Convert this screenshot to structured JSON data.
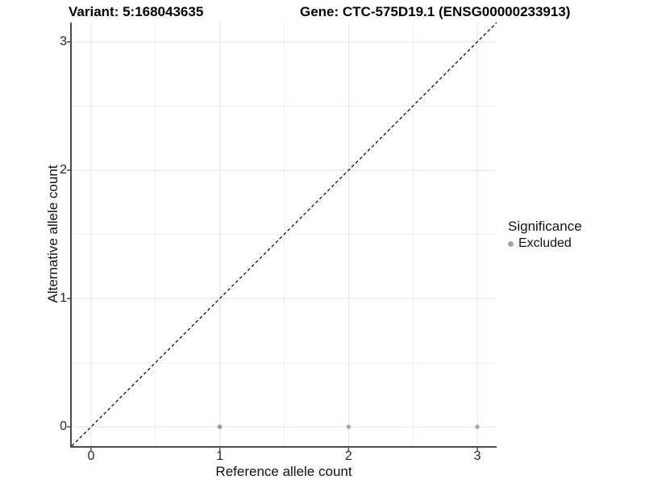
{
  "titles": {
    "variant": "Variant: 5:168043635",
    "gene": "Gene: CTC-575D19.1 (ENSG00000233913)"
  },
  "axes": {
    "x": {
      "label": "Reference allele count",
      "ticks": [
        "0",
        "1",
        "2",
        "3"
      ]
    },
    "y": {
      "label": "Alternative allele count",
      "ticks": [
        "0",
        "1",
        "2",
        "3"
      ]
    }
  },
  "legend": {
    "title": "Significance",
    "items": [
      {
        "label": "Excluded",
        "color": "#a3a3a3"
      }
    ]
  },
  "colors": {
    "background": "#ffffff",
    "axis_line": "#4c4c4c",
    "tick_mark": "#4c4c4c",
    "tick_label": "#262626",
    "grid_major": "#e3e3e3",
    "grid_minor": "#efefef",
    "reference_line": "#000000"
  },
  "chart_data": {
    "type": "scatter",
    "title": "Variant: 5:168043635 — Gene: CTC-575D19.1 (ENSG00000233913)",
    "xlabel": "Reference allele count",
    "ylabel": "Alternative allele count",
    "xlim": [
      -0.15,
      3.15
    ],
    "ylim": [
      -0.15,
      3.15
    ],
    "x_major_ticks": [
      0,
      1,
      2,
      3
    ],
    "y_major_ticks": [
      0,
      1,
      2,
      3
    ],
    "x_minor_ticks": [
      0.5,
      1.5,
      2.5
    ],
    "y_minor_ticks": [
      0.5,
      1.5,
      2.5
    ],
    "grid": true,
    "legend_position": "right",
    "reference_line": {
      "type": "identity",
      "style": "dashed",
      "color": "#000000"
    },
    "series": [
      {
        "name": "Excluded",
        "points": [
          [
            1,
            0
          ],
          [
            2,
            0
          ],
          [
            3,
            0
          ]
        ],
        "point_colors": [
          "#979797",
          "#a8a8a8",
          "#a8a8a8"
        ],
        "marker_radius": 2.7
      }
    ]
  }
}
